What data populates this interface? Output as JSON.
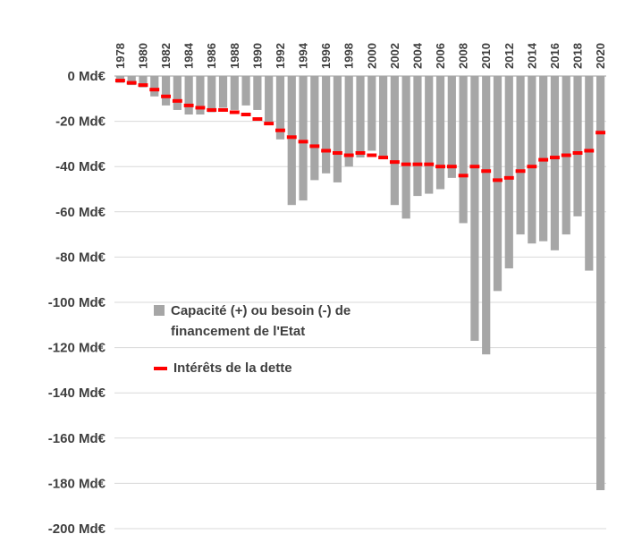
{
  "chart_data": {
    "type": "bar",
    "title": "",
    "xlabel": "",
    "ylabel": "",
    "ylim": [
      -200,
      0
    ],
    "ytick_step": 20,
    "ytick_labels": [
      "0 Md€",
      "-20 Md€",
      "-40 Md€",
      "-60 Md€",
      "-80 Md€",
      "-100 Md€",
      "-120 Md€",
      "-140 Md€",
      "-160 Md€",
      "-180 Md€",
      "-200 Md€"
    ],
    "x": [
      1978,
      1979,
      1980,
      1981,
      1982,
      1983,
      1984,
      1985,
      1986,
      1987,
      1988,
      1989,
      1990,
      1991,
      1992,
      1993,
      1994,
      1995,
      1996,
      1997,
      1998,
      1999,
      2000,
      2001,
      2002,
      2003,
      2004,
      2005,
      2006,
      2007,
      2008,
      2009,
      2010,
      2011,
      2012,
      2013,
      2014,
      2015,
      2016,
      2017,
      2018,
      2019,
      2020
    ],
    "xtick_years": [
      1978,
      1980,
      1982,
      1984,
      1986,
      1988,
      1990,
      1992,
      1994,
      1996,
      1998,
      2000,
      2002,
      2004,
      2006,
      2008,
      2010,
      2012,
      2014,
      2016,
      2018,
      2020
    ],
    "series": [
      {
        "name": "Capacité (+) ou besoin (-) de financement de l'Etat",
        "type": "bar",
        "color": "#a6a6a6",
        "values": [
          -3,
          -4,
          -5,
          -9,
          -13,
          -15,
          -17,
          -17,
          -16,
          -14,
          -15,
          -13,
          -15,
          -21,
          -28,
          -57,
          -55,
          -46,
          -43,
          -47,
          -40,
          -36,
          -33,
          -36,
          -57,
          -63,
          -53,
          -52,
          -50,
          -45,
          -65,
          -117,
          -123,
          -95,
          -85,
          -70,
          -74,
          -73,
          -77,
          -70,
          -62,
          -86,
          -183
        ]
      },
      {
        "name": "Intérêts de la dette",
        "type": "dash",
        "color": "#ff0000",
        "values": [
          -2,
          -3,
          -4,
          -6,
          -9,
          -11,
          -13,
          -14,
          -15,
          -15,
          -16,
          -17,
          -19,
          -21,
          -24,
          -27,
          -29,
          -31,
          -33,
          -34,
          -35,
          -34,
          -35,
          -36,
          -38,
          -39,
          -39,
          -39,
          -40,
          -40,
          -44,
          -40,
          -42,
          -46,
          -45,
          -42,
          -40,
          -37,
          -36,
          -35,
          -34,
          -33,
          -25
        ]
      }
    ],
    "legend": {
      "position": "inside-left",
      "bar_label_line1": "Capacité (+) ou besoin (-) de",
      "bar_label_line2": "financement de l'Etat",
      "dash_label": "Intérêts de la dette"
    },
    "colors": {
      "bar": "#a6a6a6",
      "dash": "#ff0000",
      "grid": "#d9d9d9",
      "axis_line": "#9e9e9e",
      "text": "#3f3f3f",
      "background": "#ffffff"
    },
    "grid": true
  }
}
